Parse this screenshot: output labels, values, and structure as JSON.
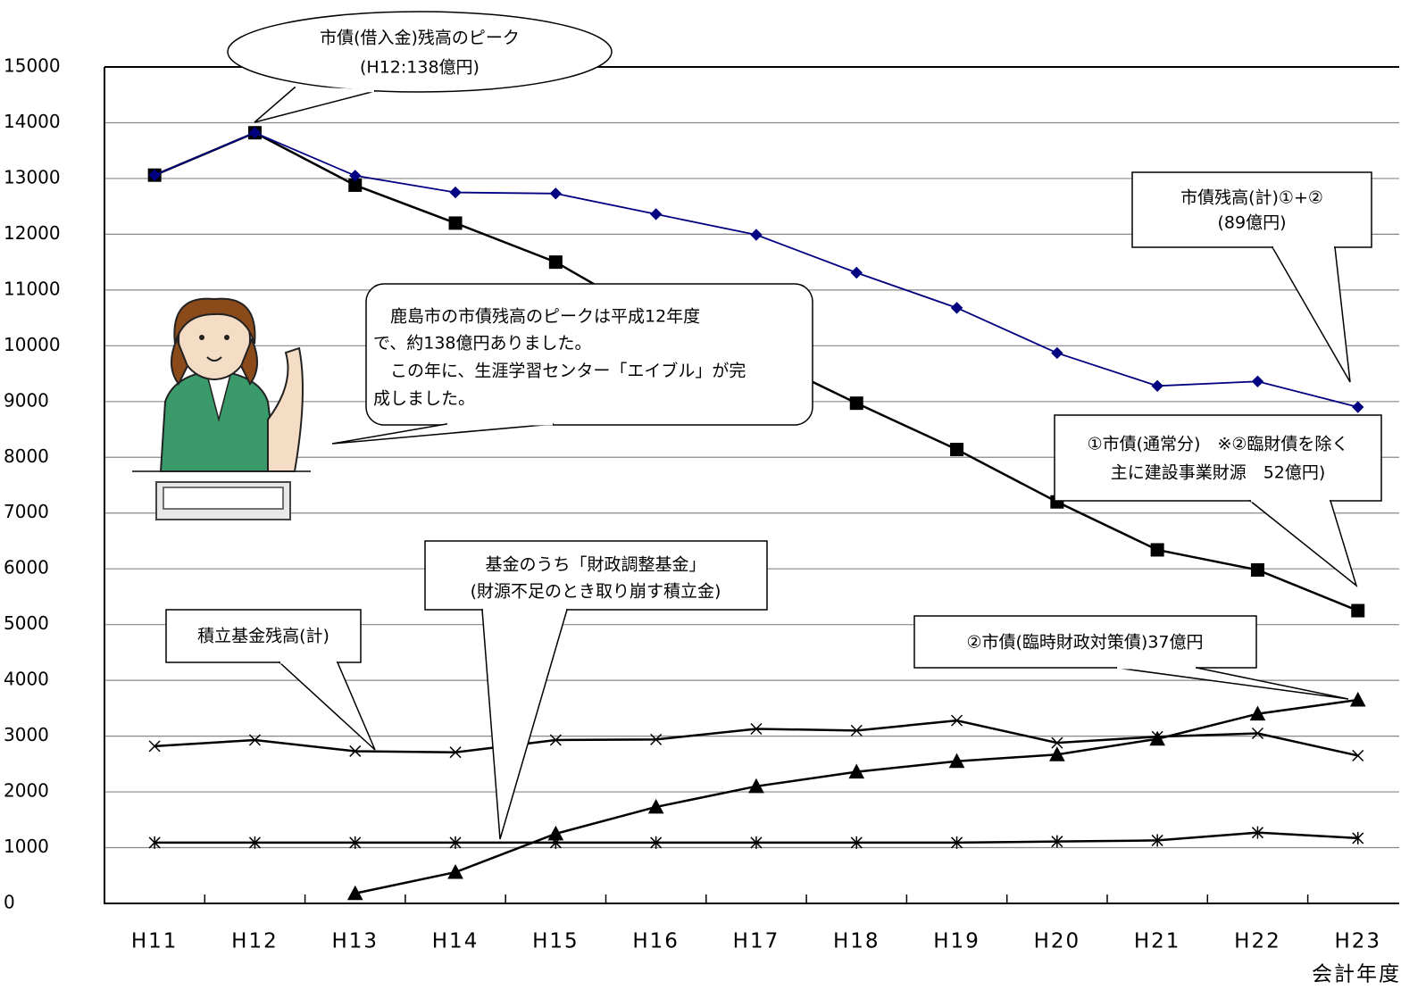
{
  "chart_data": {
    "type": "line",
    "categories": [
      "H11",
      "H12",
      "H13",
      "H14",
      "H15",
      "H16",
      "H17",
      "H18",
      "H19",
      "H20",
      "H21",
      "H22",
      "H23"
    ],
    "xlabel": "会計年度",
    "ylim": [
      0,
      15000
    ],
    "yticks": [
      0,
      1000,
      2000,
      3000,
      4000,
      5000,
      6000,
      7000,
      8000,
      9000,
      10000,
      11000,
      12000,
      13000,
      14000,
      15000
    ],
    "grid": true,
    "series": [
      {
        "color": "#000080",
        "marker": "diamond",
        "values": [
          13060,
          13820,
          13050,
          12750,
          12730,
          12360,
          11990,
          11310,
          10680,
          9870,
          9280,
          9360,
          8900
        ]
      },
      {
        "color": "#000000",
        "marker": "square",
        "values": [
          13060,
          13820,
          12880,
          12200,
          11500,
          10470,
          9840,
          8970,
          8140,
          7200,
          6340,
          5980,
          5250
        ]
      },
      {
        "color": "#000000",
        "marker": "triangle",
        "values": [
          null,
          null,
          180,
          560,
          1250,
          1730,
          2100,
          2360,
          2550,
          2670,
          2950,
          3400,
          3650
        ]
      },
      {
        "color": "#000000",
        "marker": "x",
        "values": [
          2820,
          2930,
          2730,
          2710,
          2930,
          2940,
          3130,
          3100,
          3280,
          2880,
          2990,
          3050,
          2650
        ]
      },
      {
        "color": "#000000",
        "marker": "asterisk",
        "values": [
          1090,
          1090,
          1090,
          1090,
          1090,
          1090,
          1090,
          1090,
          1090,
          1110,
          1130,
          1270,
          1170
        ]
      }
    ],
    "annotations": [
      {
        "lines": [
          "市債(借入金)残高のピーク",
          "(H12:138億円)"
        ]
      },
      {
        "lines": [
          "市債残高(計)①+②",
          "(89億円)"
        ]
      },
      {
        "lines": [
          "　鹿島市の市債残高のピークは平成12年度",
          "で、約138億円ありました。",
          "　この年に、生涯学習センター「エイブル」が完",
          "成しました。"
        ]
      },
      {
        "lines": [
          "①市債(通常分)　※②臨財債を除く",
          "主に建設事業財源　52億円)"
        ]
      },
      {
        "lines": [
          "基金のうち「財政調整基金」",
          "(財源不足のとき取り崩す積立金)"
        ]
      },
      {
        "lines": [
          "積立基金残高(計)"
        ]
      },
      {
        "lines": [
          "②市債(臨時財政対策債)37億円"
        ]
      }
    ]
  }
}
